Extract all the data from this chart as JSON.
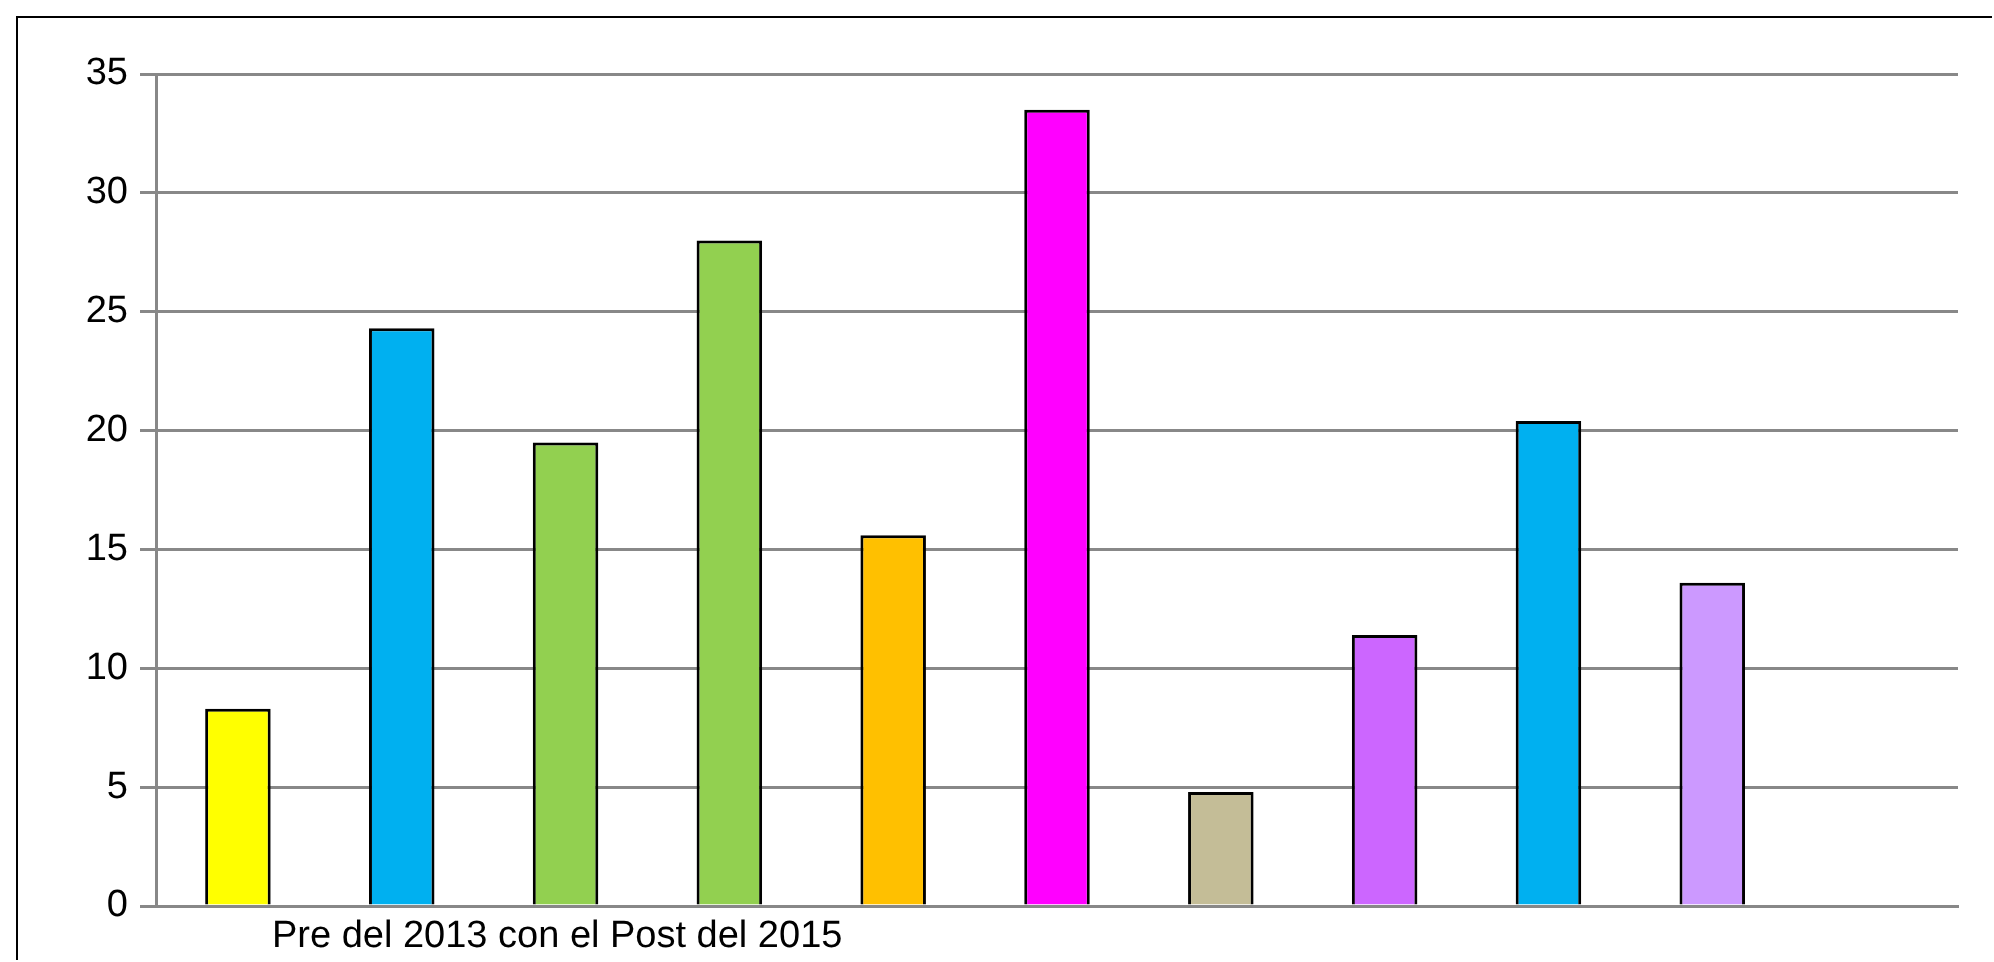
{
  "chart_data": {
    "type": "bar",
    "categories": [
      null,
      null,
      null,
      null,
      null,
      null,
      null,
      null,
      null,
      null,
      null
    ],
    "values": [
      8.3,
      24.3,
      19.5,
      28,
      15.6,
      33.5,
      4.8,
      11.4,
      20.4,
      13.6,
      null
    ],
    "colors": [
      "#ffff00",
      "#00b0f0",
      "#92d050",
      "#92d050",
      "#ffc000",
      "#ff00ff",
      "#c4bd97",
      "#cc66ff",
      "#00b0f0",
      "#cc99ff",
      "#ffffff"
    ],
    "ylim": [
      0,
      35
    ],
    "yticks": [
      0,
      5,
      10,
      15,
      20,
      25,
      30,
      35
    ],
    "grid": "y",
    "legend": false,
    "annotations": [
      "Pre del 2013 con el Post del 2015"
    ]
  }
}
